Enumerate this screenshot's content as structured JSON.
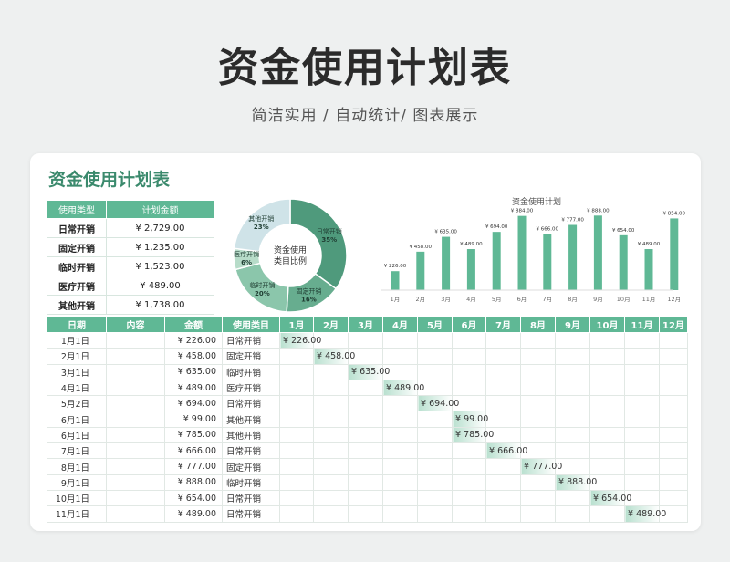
{
  "page": {
    "title": "资金使用计划表",
    "subtitle": "简洁实用 / 自动统计/ 图表展示"
  },
  "card": {
    "title": "资金使用计划表"
  },
  "summary": {
    "headers": [
      "使用类型",
      "计划金额"
    ],
    "rows": [
      {
        "type": "日常开销",
        "amount": "¥ 2,729.00"
      },
      {
        "type": "固定开销",
        "amount": "¥ 1,235.00"
      },
      {
        "type": "临时开销",
        "amount": "¥ 1,523.00"
      },
      {
        "type": "医疗开销",
        "amount": "¥ 489.00"
      },
      {
        "type": "其他开销",
        "amount": "¥ 1,738.00"
      }
    ]
  },
  "donut": {
    "center_line1": "资金使用",
    "center_line2": "类目比例",
    "slices": [
      {
        "name": "日常开销",
        "pct_label": "35%",
        "value": 35,
        "color": "#4f9a7c"
      },
      {
        "name": "固定开销",
        "pct_label": "16%",
        "value": 16,
        "color": "#67ad8f"
      },
      {
        "name": "临时开销",
        "pct_label": "20%",
        "value": 20,
        "color": "#8bc6ab"
      },
      {
        "name": "医疗开销",
        "pct_label": "6%",
        "value": 6,
        "color": "#b7dcc9"
      },
      {
        "name": "其他开销",
        "pct_label": "23%",
        "value": 23,
        "color": "#cfe3e8"
      }
    ]
  },
  "chart_data": {
    "type": "bar",
    "title": "资金使用计划",
    "categories": [
      "1月",
      "2月",
      "3月",
      "4月",
      "5月",
      "6月",
      "7月",
      "8月",
      "9月",
      "10月",
      "11月",
      "12月"
    ],
    "values": [
      226,
      458,
      635,
      489,
      694,
      884,
      666,
      777,
      888,
      654,
      489,
      854
    ],
    "value_labels": [
      "¥ 226.00",
      "¥ 458.00",
      "¥ 635.00",
      "¥ 489.00",
      "¥ 694.00",
      "¥ 884.00",
      "¥ 666.00",
      "¥ 777.00",
      "¥ 888.00",
      "¥ 654.00",
      "¥ 489.00",
      "¥ 854.00"
    ],
    "ylim": [
      0,
      1000
    ],
    "xlabel": "",
    "ylabel": "",
    "color": "#5fb895"
  },
  "ledger": {
    "headers": [
      "日期",
      "内容",
      "金额",
      "使用类目",
      "1月",
      "2月",
      "3月",
      "4月",
      "5月",
      "6月",
      "7月",
      "8月",
      "9月",
      "10月",
      "11月",
      "12月"
    ],
    "rows": [
      {
        "date": "1月1日",
        "content": "",
        "amount": "¥ 226.00",
        "type": "日常开销",
        "month": 1,
        "cell": "¥ 226.00"
      },
      {
        "date": "2月1日",
        "content": "",
        "amount": "¥ 458.00",
        "type": "固定开销",
        "month": 2,
        "cell": "¥ 458.00"
      },
      {
        "date": "3月1日",
        "content": "",
        "amount": "¥ 635.00",
        "type": "临时开销",
        "month": 3,
        "cell": "¥ 635.00"
      },
      {
        "date": "4月1日",
        "content": "",
        "amount": "¥ 489.00",
        "type": "医疗开销",
        "month": 4,
        "cell": "¥ 489.00"
      },
      {
        "date": "5月2日",
        "content": "",
        "amount": "¥ 694.00",
        "type": "日常开销",
        "month": 5,
        "cell": "¥ 694.00"
      },
      {
        "date": "6月1日",
        "content": "",
        "amount": "¥ 99.00",
        "type": "其他开销",
        "month": 6,
        "cell": "¥ 99.00"
      },
      {
        "date": "6月1日",
        "content": "",
        "amount": "¥ 785.00",
        "type": "其他开销",
        "month": 6,
        "cell": "¥ 785.00"
      },
      {
        "date": "7月1日",
        "content": "",
        "amount": "¥ 666.00",
        "type": "日常开销",
        "month": 7,
        "cell": "¥ 666.00"
      },
      {
        "date": "8月1日",
        "content": "",
        "amount": "¥ 777.00",
        "type": "固定开销",
        "month": 8,
        "cell": "¥ 777.00"
      },
      {
        "date": "9月1日",
        "content": "",
        "amount": "¥ 888.00",
        "type": "临时开销",
        "month": 9,
        "cell": "¥ 888.00"
      },
      {
        "date": "10月1日",
        "content": "",
        "amount": "¥ 654.00",
        "type": "日常开销",
        "month": 10,
        "cell": "¥ 654.00"
      },
      {
        "date": "11月1日",
        "content": "",
        "amount": "¥ 489.00",
        "type": "日常开销",
        "month": 11,
        "cell": "¥ 489.00"
      }
    ]
  }
}
